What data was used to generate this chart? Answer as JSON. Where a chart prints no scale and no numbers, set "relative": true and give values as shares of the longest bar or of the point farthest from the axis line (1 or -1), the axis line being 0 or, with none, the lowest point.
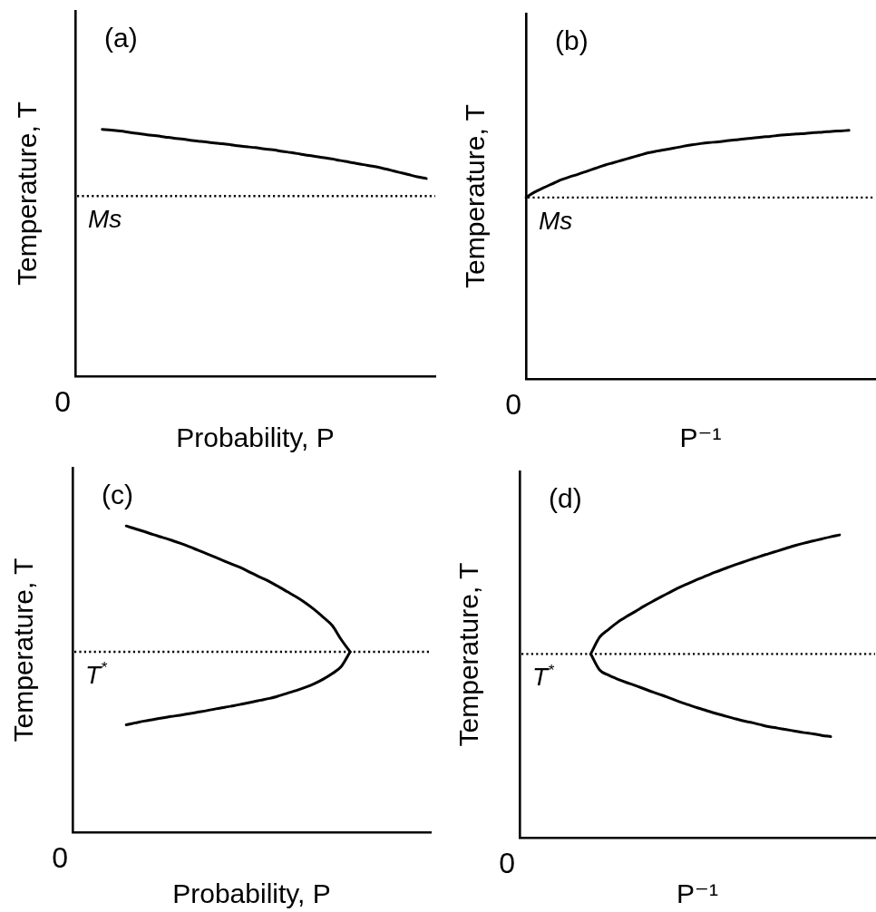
{
  "chart_data": [
    {
      "type": "line",
      "title": "(a)",
      "xlabel": "Probability, P",
      "ylabel": "Temperature, T",
      "relative": true,
      "grid": false,
      "legend": false,
      "tick_labels": false,
      "marker": "none",
      "categories": [
        null,
        null,
        null,
        null,
        null,
        null,
        null,
        null,
        null,
        null,
        null,
        null,
        null,
        null,
        null,
        null,
        null,
        null,
        null,
        null,
        null,
        null,
        null,
        null,
        null,
        null,
        null,
        null,
        null,
        null,
        null,
        null,
        null,
        null,
        null,
        null,
        null,
        null,
        null,
        null,
        null
      ],
      "series": [
        {
          "color": "#000000",
          "values": [
            null,
            null,
            null,
            1,
            0.997,
            0.993,
            0.988,
            0.983,
            0.978,
            0.974,
            0.969,
            0.964,
            0.96,
            0.955,
            0.951,
            0.947,
            0.943,
            0.939,
            0.934,
            0.93,
            0.926,
            0.921,
            0.917,
            0.911,
            0.906,
            0.9,
            0.894,
            0.889,
            0.883,
            0.877,
            0.87,
            0.864,
            0.857,
            0.851,
            0.844,
            0.835,
            0.826,
            0.817,
            0.808,
            0.801,
            null
          ]
        }
      ],
      "ref_lines": [
        {
          "axis": "y",
          "value": 0.73,
          "label": "Ms",
          "color": "#000000",
          "line_style": "dotted"
        }
      ],
      "annotations": [
        "0"
      ]
    },
    {
      "type": "line",
      "title": "(b)",
      "xlabel": "P⁻¹",
      "ylabel": "Temperature, T",
      "relative": true,
      "grid": false,
      "legend": false,
      "tick_labels": false,
      "marker": "none",
      "categories": [
        null,
        null,
        null,
        null,
        null,
        null,
        null,
        null,
        null,
        null,
        null,
        null,
        null,
        null,
        null,
        null,
        null,
        null,
        null,
        null,
        null,
        null,
        null,
        null,
        null,
        null,
        null,
        null,
        null,
        null,
        null,
        null,
        null,
        null,
        null,
        null,
        null,
        null,
        null,
        null,
        null
      ],
      "series": [
        {
          "color": "#000000",
          "values": [
            0.73,
            0.752,
            0.769,
            0.785,
            0.801,
            0.813,
            0.824,
            0.836,
            0.848,
            0.86,
            0.87,
            0.88,
            0.89,
            0.9,
            0.91,
            0.917,
            0.923,
            0.929,
            0.936,
            0.942,
            0.947,
            0.951,
            0.954,
            0.958,
            0.962,
            0.966,
            0.969,
            0.973,
            0.976,
            0.98,
            0.983,
            0.986,
            0.988,
            0.991,
            0.993,
            0.996,
            0.998,
            1,
            null,
            null,
            null
          ]
        }
      ],
      "ref_lines": [
        {
          "axis": "y",
          "value": 0.73,
          "label": "Ms",
          "color": "#000000",
          "line_style": "dotted"
        }
      ],
      "annotations": [
        "0"
      ]
    },
    {
      "type": "line",
      "title": "(c)",
      "xlabel": "Probability, P",
      "ylabel": "Temperature, T",
      "relative": true,
      "grid": false,
      "legend": false,
      "tick_labels": false,
      "marker": "none",
      "categories": [
        null,
        null,
        null,
        null,
        null,
        null,
        null,
        null,
        null,
        null,
        null,
        null,
        null,
        null,
        null,
        null,
        null,
        null,
        null,
        null,
        null,
        null,
        null,
        null,
        null,
        null,
        null,
        null,
        null,
        null,
        null,
        null,
        null,
        null,
        null,
        null,
        null,
        null,
        null,
        null,
        null
      ],
      "series": [
        {
          "color": "#000000",
          "values": [
            null,
            null,
            null,
            null,
            null,
            null,
            1,
            0.991,
            0.982,
            0.972,
            0.963,
            0.954,
            0.944,
            0.933,
            0.921,
            0.909,
            0.897,
            0.885,
            0.873,
            0.861,
            0.846,
            0.832,
            0.818,
            0.802,
            0.785,
            0.768,
            0.749,
            0.727,
            0.702,
            0.675,
            0.629,
            0.589,
            null,
            null,
            null,
            null,
            null,
            null,
            null,
            null,
            null
          ]
        },
        {
          "color": "#000000",
          "values": [
            null,
            null,
            null,
            null,
            null,
            null,
            0.351,
            0.357,
            0.363,
            0.368,
            0.373,
            0.378,
            0.382,
            0.387,
            0.392,
            0.397,
            0.403,
            0.408,
            0.413,
            0.419,
            0.425,
            0.431,
            0.437,
            0.445,
            0.454,
            0.463,
            0.473,
            0.485,
            0.5,
            0.518,
            0.541,
            0.589,
            null,
            null,
            null,
            null,
            null,
            null,
            null,
            null,
            null
          ]
        }
      ],
      "ref_lines": [
        {
          "axis": "y",
          "value": 0.589,
          "label": "T$^{*}$",
          "color": "#000000",
          "line_style": "dotted"
        }
      ],
      "annotations": [
        "0"
      ]
    },
    {
      "type": "line",
      "title": "(d)",
      "xlabel": "P⁻¹",
      "ylabel": "Temperature, T",
      "relative": true,
      "grid": false,
      "legend": false,
      "tick_labels": false,
      "marker": "none",
      "categories": [
        null,
        null,
        null,
        null,
        null,
        null,
        null,
        null,
        null,
        null,
        null,
        null,
        null,
        null,
        null,
        null,
        null,
        null,
        null,
        null,
        null,
        null,
        null,
        null,
        null,
        null,
        null,
        null,
        null,
        null,
        null,
        null,
        null,
        null,
        null,
        null,
        null,
        null,
        null,
        null,
        null
      ],
      "series": [
        {
          "color": "#000000",
          "values": [
            null,
            null,
            null,
            null,
            null,
            null,
            null,
            null,
            0.607,
            0.662,
            0.688,
            0.711,
            0.73,
            0.747,
            0.765,
            0.781,
            0.797,
            0.812,
            0.827,
            0.84,
            0.853,
            0.865,
            0.877,
            0.888,
            0.899,
            0.909,
            0.919,
            0.929,
            0.938,
            0.947,
            0.956,
            0.965,
            0.973,
            0.98,
            0.987,
            0.994,
            1,
            null,
            null,
            null,
            null
          ]
        },
        {
          "color": "#000000",
          "values": [
            null,
            null,
            null,
            null,
            null,
            null,
            null,
            null,
            0.607,
            0.554,
            0.537,
            0.524,
            0.513,
            0.503,
            0.492,
            0.481,
            0.471,
            0.46,
            0.449,
            0.439,
            0.429,
            0.42,
            0.411,
            0.403,
            0.395,
            0.387,
            0.381,
            0.374,
            0.367,
            0.362,
            0.357,
            0.352,
            0.347,
            0.343,
            0.338,
            0.334,
            null,
            null,
            null,
            null,
            null
          ]
        }
      ],
      "ref_lines": [
        {
          "axis": "y",
          "value": 0.607,
          "label": "T$^{*}$",
          "color": "#000000",
          "line_style": "dotted"
        }
      ],
      "annotations": [
        "0"
      ]
    }
  ]
}
